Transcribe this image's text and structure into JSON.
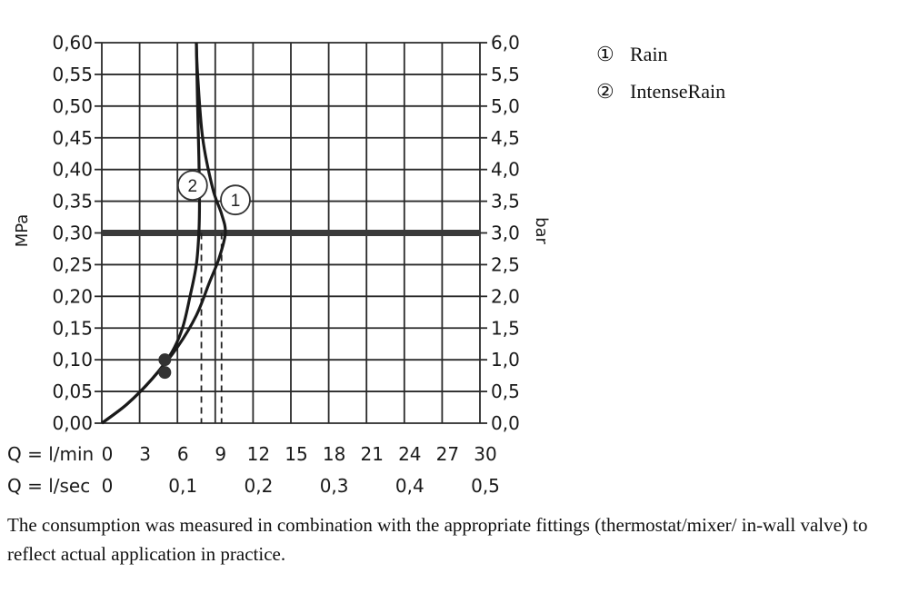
{
  "chart_data": {
    "type": "line",
    "left_axis": {
      "label": "MPa",
      "range": [
        0,
        0.6
      ],
      "ticks": [
        "0,00",
        "0,05",
        "0,10",
        "0,15",
        "0,20",
        "0,25",
        "0,30",
        "0,35",
        "0,40",
        "0,45",
        "0,50",
        "0,55",
        "0,60"
      ]
    },
    "right_axis": {
      "label": "bar",
      "range": [
        0,
        6
      ],
      "ticks": [
        "0,0",
        "0,5",
        "1,0",
        "1,5",
        "2,0",
        "2,5",
        "3,0",
        "3,5",
        "4,0",
        "4,5",
        "5,0",
        "5,5",
        "6,0"
      ]
    },
    "x_axis": {
      "range": [
        0,
        30
      ],
      "row1_label": "Q = l/min",
      "row1_ticks": [
        "0",
        "3",
        "6",
        "9",
        "12",
        "15",
        "18",
        "21",
        "24",
        "27",
        "30"
      ],
      "row2_label": "Q = l/sec",
      "row2_values": [
        0,
        0.1,
        0.2,
        0.3,
        0.4,
        0.5
      ],
      "row2_ticks": [
        "0",
        "0,1",
        "0,2",
        "0,3",
        "0,4",
        "0,5"
      ]
    },
    "grid": true,
    "reference_line": {
      "y": 0.3
    },
    "series": [
      {
        "name": "Rain",
        "marker": "1",
        "x": [
          0,
          2,
          4,
          6,
          7.5,
          8.5,
          9.3,
          9.8,
          9.5,
          8.8,
          8,
          7.6,
          7.5
        ],
        "y": [
          0,
          0.03,
          0.07,
          0.12,
          0.17,
          0.22,
          0.26,
          0.3,
          0.33,
          0.37,
          0.45,
          0.55,
          0.6
        ],
        "drop_x": 9.5
      },
      {
        "name": "IntenseRain",
        "marker": "2",
        "x": [
          0,
          2,
          4,
          5.5,
          6.4,
          7,
          7.5,
          7.7,
          7.75,
          7.7,
          7.6,
          7.5
        ],
        "y": [
          0,
          0.03,
          0.07,
          0.11,
          0.15,
          0.2,
          0.25,
          0.3,
          0.35,
          0.42,
          0.5,
          0.6
        ],
        "drop_x": 7.9
      }
    ],
    "points": [
      {
        "x": 5,
        "y": 0.1
      },
      {
        "x": 5,
        "y": 0.08
      }
    ],
    "legend": {
      "placement": "top-right",
      "entries": [
        {
          "symbol": "①",
          "label": "Rain"
        },
        {
          "symbol": "②",
          "label": "IntenseRain"
        }
      ]
    }
  },
  "note": "The consumption was measured in combination with the appropriate fittings (thermostat/mixer/ in-wall valve) to reflect actual application in practice."
}
